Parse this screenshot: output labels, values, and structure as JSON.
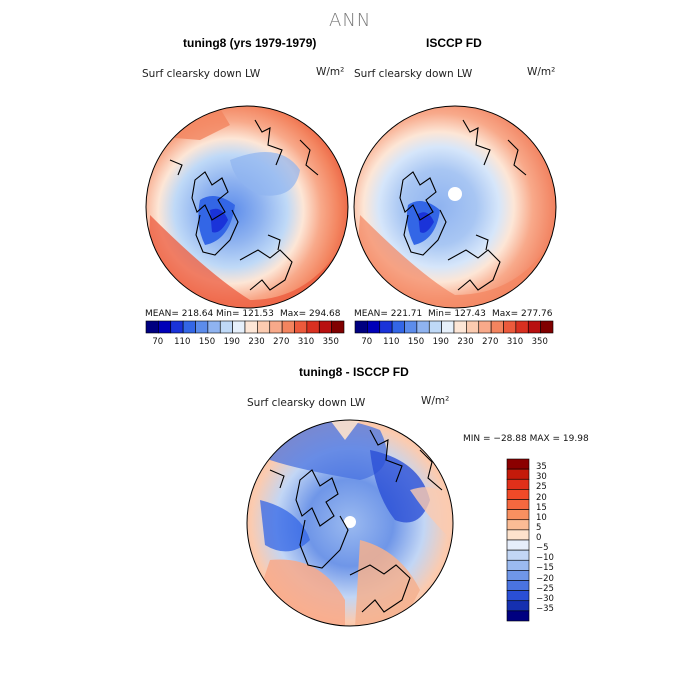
{
  "title": "ANN",
  "panels": [
    {
      "title": "tuning8 (yrs 1979-1979)",
      "variable": "Surf clearsky down LW",
      "units": "W/m²",
      "stats": {
        "mean": "MEAN= 218.64",
        "min": "Min= 121.53",
        "max": "Max= 294.68"
      }
    },
    {
      "title": "ISCCP FD",
      "variable": "Surf clearsky down LW",
      "units": "W/m²",
      "stats": {
        "mean": "MEAN= 221.71",
        "min": "Min= 127.43",
        "max": "Max= 277.76"
      }
    },
    {
      "title": "tuning8 - ISCCP FD",
      "variable": "Surf clearsky down LW",
      "units": "W/m²",
      "stats": {
        "minmax": "MIN = −28.88  MAX =  19.98"
      }
    }
  ],
  "colorbar_abs": {
    "labels": [
      "70",
      "110",
      "150",
      "190",
      "230",
      "270",
      "310",
      "350"
    ],
    "colors": [
      "#000080",
      "#0000b8",
      "#1a33d9",
      "#3366e6",
      "#5c8ceb",
      "#8fb3f0",
      "#bfd9f7",
      "#e6f0fb",
      "#fde6d6",
      "#fbcbb0",
      "#f8a98a",
      "#f3845f",
      "#ec5a3c",
      "#d93020",
      "#b81010",
      "#800000"
    ]
  },
  "colorbar_diff": {
    "labels": [
      "35",
      "30",
      "25",
      "20",
      "15",
      "10",
      "5",
      "0",
      "−5",
      "−10",
      "−15",
      "−20",
      "−25",
      "−30",
      "−35"
    ],
    "colors": [
      "#8b0000",
      "#c41a0a",
      "#e0301a",
      "#f04a28",
      "#f5683f",
      "#f89060",
      "#fbbc95",
      "#fde2cc",
      "#e6eefb",
      "#c2d6f5",
      "#9bbaf0",
      "#6f96e8",
      "#4a73e0",
      "#2a4fd6",
      "#1530b0",
      "#000080"
    ]
  }
}
